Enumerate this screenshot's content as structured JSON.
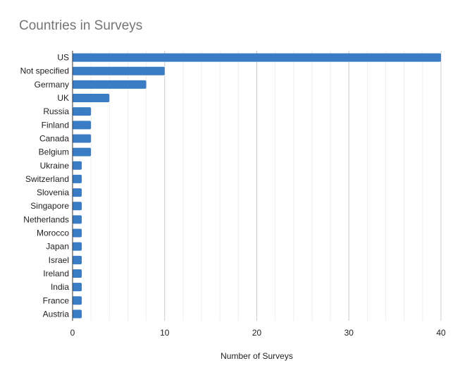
{
  "chart_data": {
    "type": "bar",
    "orientation": "horizontal",
    "title": "Countries in Surveys",
    "xlabel": "Number of Surveys",
    "ylabel": "",
    "categories": [
      "US",
      "Not specified",
      "Germany",
      "UK",
      "Russia",
      "Finland",
      "Canada",
      "Belgium",
      "Ukraine",
      "Switzerland",
      "Slovenia",
      "Singapore",
      "Netherlands",
      "Morocco",
      "Japan",
      "Israel",
      "Ireland",
      "India",
      "France",
      "Austria"
    ],
    "values": [
      40,
      10,
      8,
      4,
      2,
      2,
      2,
      2,
      1,
      1,
      1,
      1,
      1,
      1,
      1,
      1,
      1,
      1,
      1,
      1
    ],
    "xlim": [
      0,
      40
    ],
    "xticks": [
      "0",
      "10",
      "20",
      "30",
      "40"
    ],
    "grid": true,
    "legend": "none",
    "bar_color": "#3b7dc4"
  }
}
